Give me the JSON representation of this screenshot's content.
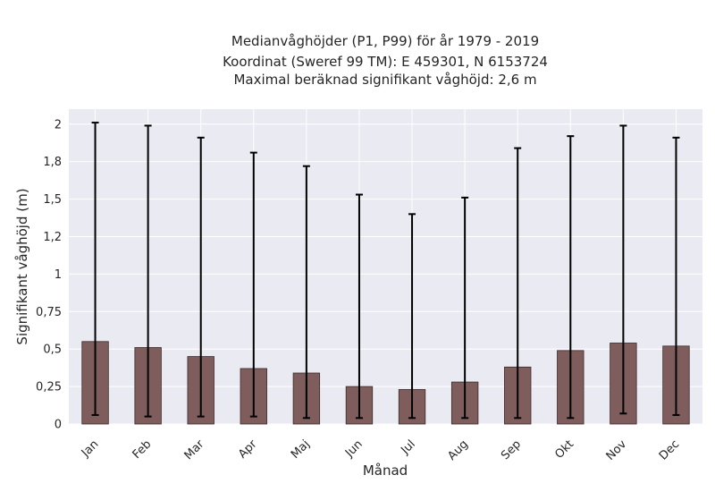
{
  "chart_data": {
    "type": "bar",
    "title_lines": [
      "Medianvåghöjder (P1, P99) för år 1979 - 2019",
      "Koordinat (Sweref 99 TM): E 459301, N 6153724",
      "Maximal beräknad signifikant våghöjd: 2,6 m"
    ],
    "xlabel": "Månad",
    "ylabel": "Signifikant våghöjd (m)",
    "categories": [
      "Jan",
      "Feb",
      "Mar",
      "Apr",
      "Maj",
      "Jun",
      "Jul",
      "Aug",
      "Sep",
      "Okt",
      "Nov",
      "Dec"
    ],
    "values": [
      0.55,
      0.51,
      0.45,
      0.37,
      0.34,
      0.25,
      0.23,
      0.28,
      0.38,
      0.49,
      0.54,
      0.52
    ],
    "error_low": [
      0.06,
      0.05,
      0.05,
      0.05,
      0.04,
      0.04,
      0.04,
      0.04,
      0.04,
      0.04,
      0.07,
      0.06
    ],
    "error_high": [
      2.01,
      1.99,
      1.91,
      1.81,
      1.72,
      1.53,
      1.4,
      1.51,
      1.84,
      1.92,
      1.99,
      1.91
    ],
    "yticks": [
      {
        "value": 0,
        "label": "0"
      },
      {
        "value": 0.25,
        "label": "0,25"
      },
      {
        "value": 0.5,
        "label": "0,5"
      },
      {
        "value": 0.75,
        "label": "0,75"
      },
      {
        "value": 1.0,
        "label": "1"
      },
      {
        "value": 1.25,
        "label": "1,2"
      },
      {
        "value": 1.5,
        "label": "1,5"
      },
      {
        "value": 1.75,
        "label": "1,8"
      },
      {
        "value": 2.0,
        "label": "2"
      }
    ],
    "ylim": [
      0,
      2.1
    ],
    "grid": true,
    "colors": {
      "bar": "#7f5d5d",
      "bar_edge": "#3a2a2a",
      "error": "#000000",
      "background": "#eaeaf2",
      "grid": "#ffffff"
    }
  }
}
